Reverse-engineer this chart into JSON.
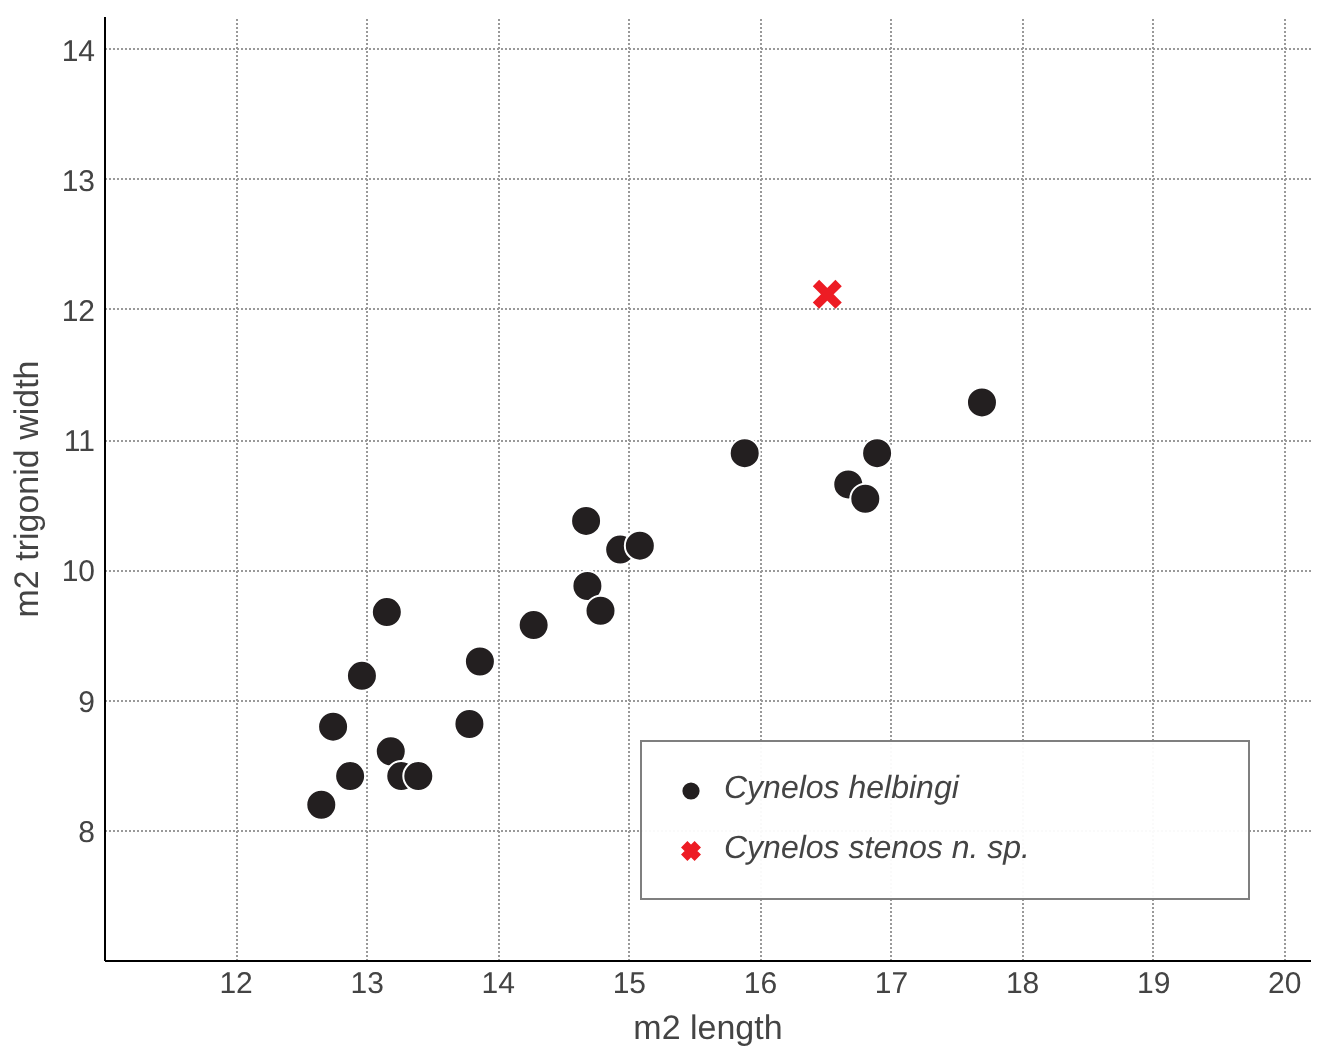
{
  "chart_data": {
    "type": "scatter",
    "xlabel": "m2 length",
    "ylabel": "m2 trigonid width",
    "xlim": [
      11,
      20.2
    ],
    "ylim": [
      7,
      14.25
    ],
    "xticks": [
      12,
      13,
      14,
      15,
      16,
      17,
      18,
      19,
      20
    ],
    "yticks": [
      8,
      9,
      10,
      11,
      12,
      13,
      14
    ],
    "grid": true,
    "legend": "bottom right",
    "series": [
      {
        "name": "Cynelos helbingi",
        "color": "#231f20",
        "marker": "circle",
        "x": [
          12.65,
          12.74,
          12.87,
          12.96,
          13.15,
          13.18,
          13.26,
          13.39,
          13.78,
          13.86,
          14.27,
          14.67,
          14.68,
          14.78,
          14.93,
          15.08,
          15.88,
          16.67,
          16.8,
          16.89,
          17.69
        ],
        "values": [
          8.2,
          8.8,
          8.42,
          9.19,
          9.68,
          8.61,
          8.42,
          8.42,
          8.82,
          9.3,
          9.58,
          10.38,
          9.88,
          9.69,
          10.16,
          10.19,
          10.9,
          10.66,
          10.55,
          10.9,
          11.29
        ]
      },
      {
        "name": "Cynelos stenos n. sp.",
        "color": "#ed1c24",
        "marker": "cross",
        "x": [
          16.51
        ],
        "values": [
          12.12
        ]
      }
    ]
  }
}
